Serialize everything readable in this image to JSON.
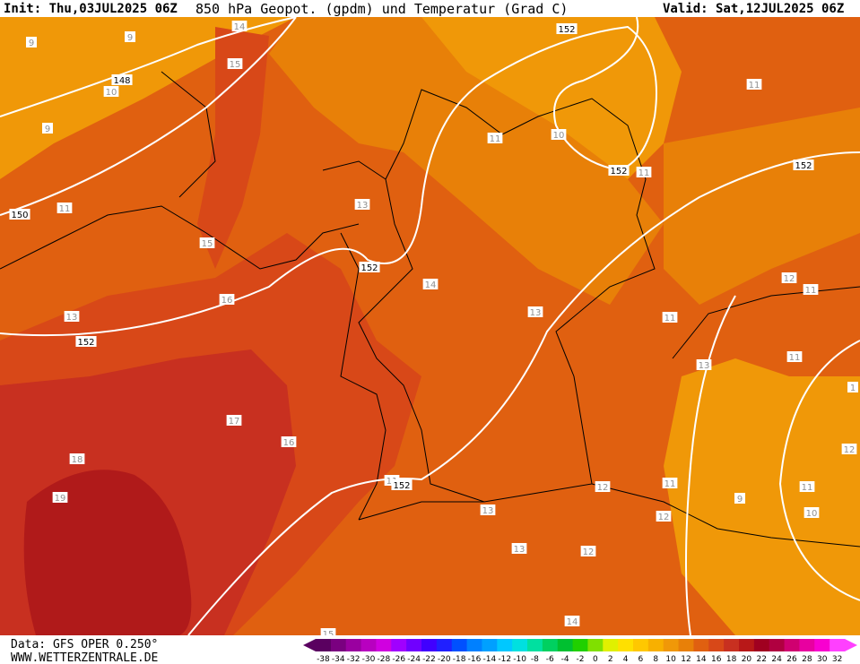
{
  "header": {
    "init": "Init: Thu,03JUL2025 06Z",
    "title": "850 hPa Geopot. (gpdm) und Temperatur (Grad C)",
    "valid": "Valid: Sat,12JUL2025 06Z"
  },
  "map": {
    "temperature_labels": [
      9,
      9,
      14,
      15,
      10,
      9,
      11,
      15,
      13,
      16,
      13,
      14,
      13,
      11,
      11,
      11,
      12,
      11,
      11,
      13,
      11,
      1,
      17,
      16,
      18,
      19,
      11,
      12,
      11,
      9,
      11,
      12,
      12,
      13,
      13,
      12,
      14,
      15,
      10,
      10
    ],
    "geopotential_labels": [
      148,
      150,
      152,
      152,
      152,
      152,
      152,
      152
    ]
  },
  "footer": {
    "source": "Data: GFS OPER 0.250°",
    "site": "WWW.WETTERZENTRALE.DE"
  },
  "legend": {
    "labels": [
      -38,
      -34,
      -32,
      -30,
      -28,
      -26,
      -24,
      -22,
      -20,
      -18,
      -16,
      -14,
      -12,
      -10,
      -8,
      -6,
      -4,
      -2,
      0,
      2,
      4,
      6,
      8,
      10,
      12,
      14,
      16,
      18,
      20,
      22,
      24,
      26,
      28,
      30,
      32
    ],
    "colors": [
      "#5a0060",
      "#7a0080",
      "#9a00a0",
      "#b800c0",
      "#d000e0",
      "#a000ff",
      "#7000ff",
      "#4000ff",
      "#2020ff",
      "#0050ff",
      "#0080ff",
      "#00a0ff",
      "#00c8ff",
      "#00e0e0",
      "#00e0a0",
      "#00d060",
      "#00c030",
      "#20d000",
      "#80e000",
      "#e0f000",
      "#ffe000",
      "#ffc800",
      "#f8b000",
      "#f09808",
      "#e88008",
      "#e06010",
      "#d84818",
      "#c83020",
      "#b81818",
      "#a00020",
      "#b00040",
      "#d00070",
      "#e800a0",
      "#f800d0",
      "#ff40ff"
    ]
  }
}
